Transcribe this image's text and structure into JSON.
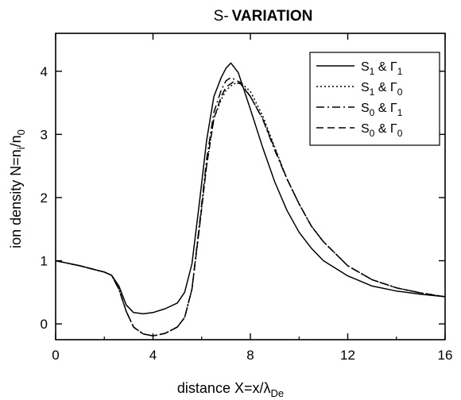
{
  "chart_data": {
    "type": "line",
    "title_prefix": "S-",
    "title_bold": "VARIATION",
    "xlabel": {
      "text": "distance  X=x/",
      "greek": "λ",
      "sub": "De"
    },
    "ylabel": {
      "text": "ion density  N=n",
      "sub1": "i",
      "mid": "/n",
      "sub2": "0"
    },
    "xlim": [
      0,
      16
    ],
    "ylim": [
      -0.25,
      4.6
    ],
    "xticks": [
      0,
      4,
      8,
      12,
      16
    ],
    "yticks": [
      0,
      1,
      2,
      3,
      4
    ],
    "grid": false,
    "legend_position": "top-right",
    "series": [
      {
        "name": "S1 & Γ1",
        "label": {
          "a": "S",
          "a_sub": "1",
          "amp": " & ",
          "b": "Γ",
          "b_sub": "1"
        },
        "dash": "solid",
        "x": [
          0,
          0.5,
          1,
          1.5,
          2,
          2.3,
          2.6,
          2.9,
          3.2,
          3.6,
          4,
          4.5,
          5,
          5.3,
          5.6,
          5.9,
          6.2,
          6.5,
          6.8,
          7.0,
          7.2,
          7.5,
          8,
          8.5,
          9,
          9.5,
          10,
          10.5,
          11,
          12,
          13,
          14,
          15,
          16
        ],
        "y": [
          1.0,
          0.96,
          0.92,
          0.87,
          0.82,
          0.77,
          0.6,
          0.3,
          0.18,
          0.16,
          0.18,
          0.24,
          0.33,
          0.5,
          0.95,
          1.9,
          2.9,
          3.6,
          3.9,
          4.05,
          4.13,
          3.98,
          3.4,
          2.8,
          2.25,
          1.8,
          1.45,
          1.2,
          1.0,
          0.76,
          0.6,
          0.52,
          0.47,
          0.43
        ]
      },
      {
        "name": "S1 & Γ0",
        "label": {
          "a": "S",
          "a_sub": "1",
          "amp": " & ",
          "b": "Γ",
          "b_sub": "0"
        },
        "dash": "dotted",
        "x": [
          0,
          0.5,
          1,
          1.5,
          2,
          2.3,
          2.6,
          2.9,
          3.2,
          3.6,
          4,
          4.5,
          5,
          5.3,
          5.6,
          5.9,
          6.2,
          6.5,
          6.8,
          7.0,
          7.3,
          7.6,
          8,
          8.5,
          9,
          9.5,
          10,
          10.5,
          11,
          12,
          13,
          14,
          15,
          16
        ],
        "y": [
          1.0,
          0.96,
          0.92,
          0.87,
          0.82,
          0.77,
          0.55,
          0.2,
          -0.05,
          -0.16,
          -0.19,
          -0.15,
          -0.05,
          0.1,
          0.55,
          1.5,
          2.5,
          3.25,
          3.55,
          3.7,
          3.8,
          3.82,
          3.68,
          3.3,
          2.8,
          2.3,
          1.9,
          1.55,
          1.3,
          0.92,
          0.7,
          0.57,
          0.49,
          0.43
        ]
      },
      {
        "name": "S0 & Γ1",
        "label": {
          "a": "S",
          "a_sub": "0",
          "amp": " & ",
          "b": "Γ",
          "b_sub": "1"
        },
        "dash": "dashdot",
        "x": [
          0,
          0.5,
          1,
          1.5,
          2,
          2.3,
          2.6,
          2.9,
          3.2,
          3.6,
          4,
          4.5,
          5,
          5.3,
          5.6,
          5.9,
          6.2,
          6.5,
          6.8,
          7.0,
          7.2,
          7.6,
          8,
          8.5,
          9,
          9.5,
          10,
          10.5,
          11,
          12,
          13,
          14,
          15,
          16
        ],
        "y": [
          1.0,
          0.96,
          0.92,
          0.87,
          0.82,
          0.77,
          0.55,
          0.2,
          -0.05,
          -0.16,
          -0.19,
          -0.15,
          -0.05,
          0.1,
          0.55,
          1.55,
          2.6,
          3.35,
          3.7,
          3.85,
          3.9,
          3.82,
          3.6,
          3.25,
          2.75,
          2.3,
          1.9,
          1.55,
          1.3,
          0.92,
          0.7,
          0.57,
          0.49,
          0.43
        ]
      },
      {
        "name": "S0 & Γ0",
        "label": {
          "a": "S",
          "a_sub": "0",
          "amp": " & ",
          "b": "Γ",
          "b_sub": "0"
        },
        "dash": "dashed",
        "x": [
          0,
          0.5,
          1,
          1.5,
          2,
          2.3,
          2.6,
          2.9,
          3.2,
          3.6,
          4,
          4.5,
          5,
          5.3,
          5.6,
          5.9,
          6.2,
          6.5,
          6.8,
          7.0,
          7.3,
          7.6,
          8,
          8.5,
          9,
          9.5,
          10,
          10.5,
          11,
          12,
          13,
          14,
          15,
          16
        ],
        "y": [
          1.0,
          0.96,
          0.92,
          0.87,
          0.82,
          0.77,
          0.55,
          0.2,
          -0.05,
          -0.16,
          -0.19,
          -0.15,
          -0.05,
          0.1,
          0.55,
          1.5,
          2.5,
          3.25,
          3.6,
          3.75,
          3.83,
          3.8,
          3.6,
          3.25,
          2.78,
          2.3,
          1.9,
          1.55,
          1.3,
          0.92,
          0.7,
          0.57,
          0.49,
          0.43
        ]
      }
    ]
  },
  "colors": {
    "ink": "#000000",
    "background": "#ffffff"
  }
}
